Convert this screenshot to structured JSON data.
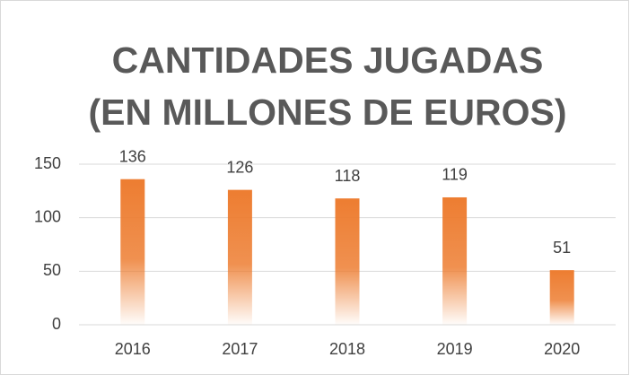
{
  "chart_data": {
    "type": "bar",
    "title": [
      "CANTIDADES JUGADAS",
      "(EN MILLONES DE EUROS)"
    ],
    "categories": [
      "2016",
      "2017",
      "2018",
      "2019",
      "2020"
    ],
    "values": [
      136,
      126,
      118,
      119,
      51
    ],
    "color": "#ed7d31",
    "ylim": [
      0,
      150
    ],
    "yticks": [
      0,
      50,
      100,
      150
    ],
    "grid": true
  }
}
